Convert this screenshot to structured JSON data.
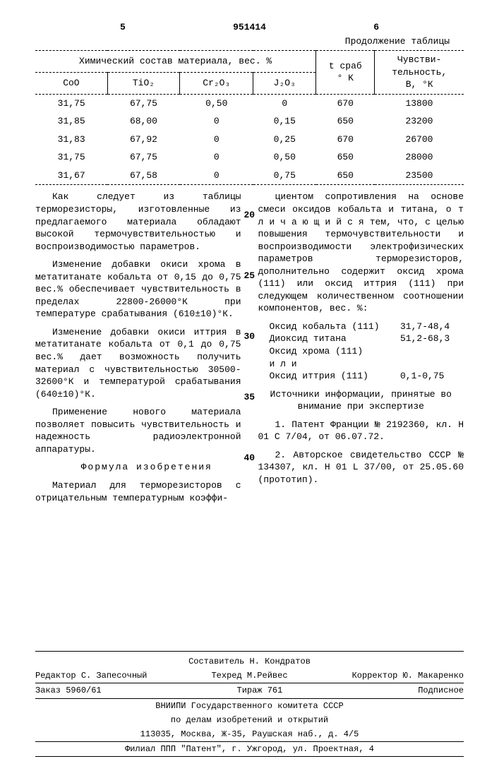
{
  "header": {
    "page_left": "5",
    "doc_number": "951414",
    "page_right": "6"
  },
  "table": {
    "continuation": "Продолжение таблицы",
    "group_header": "Химический состав материала, вес. %",
    "cols": {
      "c1": "CoO",
      "c2": "TiO₂",
      "c3": "Cr₂O₃",
      "c4": "J₂O₃",
      "c5_a": "t сраб",
      "c5_b": "° K",
      "c6_a": "Чувстви-",
      "c6_b": "тельность,",
      "c6_c": "В, °К"
    },
    "rows": [
      {
        "c1": "31,75",
        "c2": "67,75",
        "c3": "0,50",
        "c4": "0",
        "c5": "670",
        "c6": "13800"
      },
      {
        "c1": "31,85",
        "c2": "68,00",
        "c3": "0",
        "c4": "0,15",
        "c5": "650",
        "c6": "23200"
      },
      {
        "c1": "31,83",
        "c2": "67,92",
        "c3": "0",
        "c4": "0,25",
        "c5": "670",
        "c6": "26700"
      },
      {
        "c1": "31,75",
        "c2": "67,75",
        "c3": "0",
        "c4": "0,50",
        "c5": "650",
        "c6": "28000"
      },
      {
        "c1": "31,67",
        "c2": "67,58",
        "c3": "0",
        "c4": "0,75",
        "c5": "650",
        "c6": "23500"
      }
    ]
  },
  "left_col": {
    "p1": "Как следует из таблицы терморезисторы, изготовленные из предлагаемого материала обладают высокой термочувствительностью и воспроизводимостью параметров.",
    "p2": "Изменение добавки окиси хрома в метатитанате кобальта от 0,15 до 0,75 вес.% обеспечивает чувствительность в пределах 22800-26000°К при температуре срабатывания (610±10)°К.",
    "p3": "Изменение добавки окиси иттрия в метатитанате кобальта от 0,1 до 0,75 вес.% дает возможность получить материал с чувствительностью 30500-32600°К и температурой срабатывания (640±10)°К.",
    "p4": "Применение нового материала позволяет повысить чувствительность и надежность радиоэлектронной аппаратуры.",
    "formula_title": "Формула изобретения",
    "p5": "Материал для терморезисторов с отрицательным температурным коэффи-"
  },
  "right_col": {
    "p1": "циентом сопротивления на основе смеси оксидов кобальта и титана, о т л и ч а ю щ и й с я  тем, что, с целью повышения термочувствительности и воспроизводимости электрофизических параметров терморезисторов, дополнительно содержит оксид хрома (111) или оксид иттрия (111) при следующем количественном соотношении компонентов, вес. %:",
    "table": [
      {
        "label": "Оксид кобальта (111)",
        "value": "31,7-48,4"
      },
      {
        "label": "Диоксид титана",
        "value": "51,2-68,3"
      },
      {
        "label": "Оксид хрома (111)",
        "value": ""
      },
      {
        "label": "    и л и",
        "value": ""
      },
      {
        "label": "Оксид иттрия (111)",
        "value": "0,1-0,75"
      }
    ],
    "sources_title": "Источники информации, принятые во внимание при экспертизе",
    "s1": "1. Патент Франции № 2192360, кл. H 01 C 7/04, от 06.07.72.",
    "s2": "2. Авторское свидетельство СССР № 134307, кл. H 01 L 37/00, от 25.05.60 (прототип)."
  },
  "line_numbers": {
    "n1": "20",
    "n2": "25",
    "n3": "30",
    "n4": "35",
    "n5": "40"
  },
  "footer": {
    "compiler_label": "Составитель",
    "compiler": "Н. Кондратов",
    "editor_label": "Редактор",
    "editor": "С. Запесочный",
    "techred_label": "Техред",
    "techred": "М.Рейвес",
    "corrector_label": "Корректор",
    "corrector": "Ю. Макаренко",
    "order_label": "Заказ",
    "order": "5960/61",
    "tirazh_label": "Тираж",
    "tirazh": "761",
    "subscription": "Подписное",
    "org1": "ВНИИПИ Государственного комитета СССР",
    "org2": "по делам изобретений и открытий",
    "addr1": "113035, Москва, Ж-35, Раушская наб., д. 4/5",
    "addr2": "Филиал ППП \"Патент\", г. Ужгород, ул. Проектная, 4"
  }
}
